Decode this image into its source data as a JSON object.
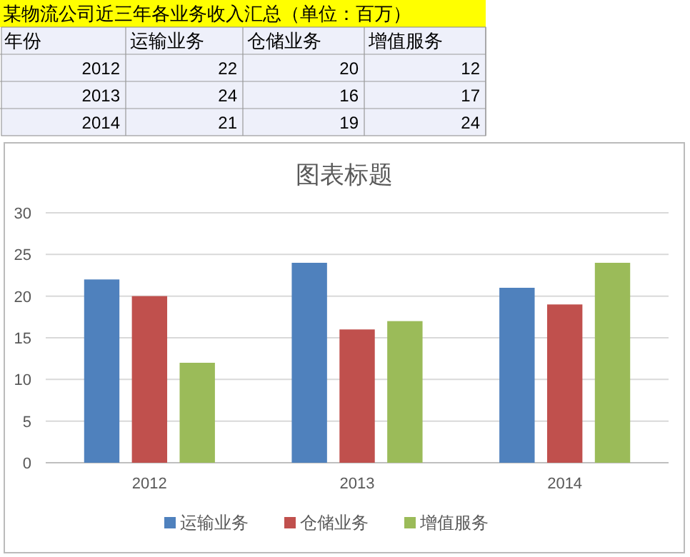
{
  "chart_data": {
    "type": "bar",
    "title": "图表标题",
    "categories": [
      "2012",
      "2013",
      "2014"
    ],
    "series": [
      {
        "name": "运输业务",
        "color": "#4f81bd",
        "values": [
          22,
          24,
          21
        ]
      },
      {
        "name": "仓储业务",
        "color": "#c0504d",
        "values": [
          20,
          16,
          19
        ]
      },
      {
        "name": "增值服务",
        "color": "#9bbb59",
        "values": [
          12,
          17,
          24
        ]
      }
    ],
    "ylim": [
      0,
      30
    ],
    "yticks": [
      0,
      5,
      10,
      15,
      20,
      25,
      30
    ],
    "grid": "y",
    "legend": "bottom",
    "annotations": [
      "某物流公司近三年各业务收入汇总（单位：百万）",
      "年份",
      "22",
      "20",
      "12",
      "24",
      "16",
      "17",
      "21",
      "19",
      "24"
    ]
  }
}
